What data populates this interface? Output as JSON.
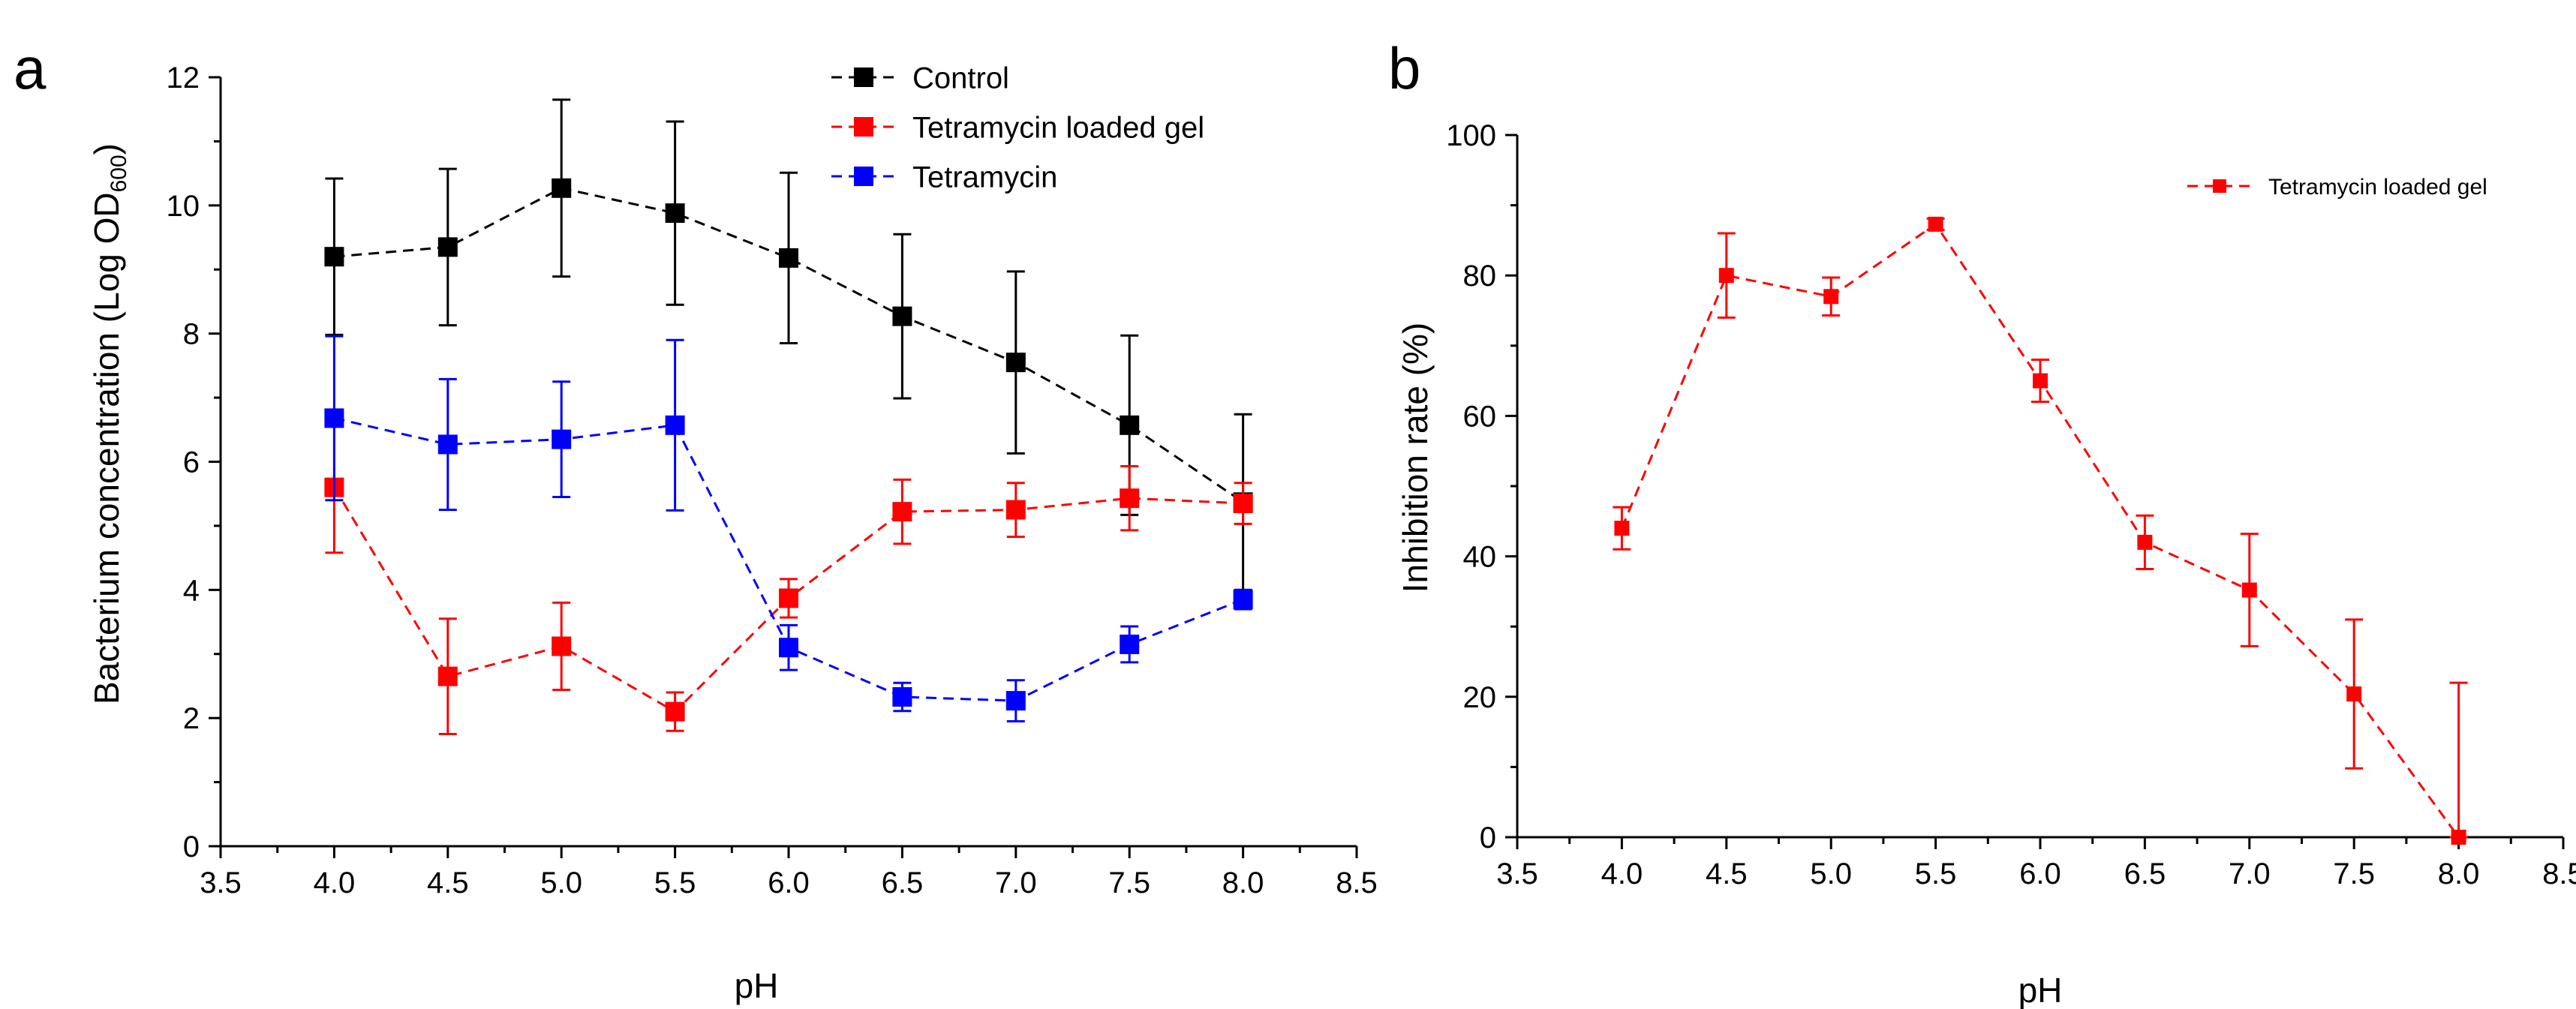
{
  "chart_data": [
    {
      "type": "line",
      "panel_label": "a",
      "title": "",
      "xlabel": "pH",
      "ylabel": "Bacterium concentration (Log OD",
      "ylabel_subscript": "600",
      "ylabel_close": ")",
      "xlim": [
        3.5,
        8.5
      ],
      "ylim": [
        0,
        12
      ],
      "xticks": [
        3.5,
        4.0,
        4.5,
        5.0,
        5.5,
        6.0,
        6.5,
        7.0,
        7.5,
        8.0,
        8.5
      ],
      "xtick_labels": [
        "3.5",
        "4.0",
        "4.5",
        "5.0",
        "5.5",
        "6.0",
        "6.5",
        "7.0",
        "7.5",
        "8.0",
        "8.5"
      ],
      "yticks": [
        0,
        2,
        4,
        6,
        8,
        10,
        12
      ],
      "ytick_labels": [
        "0",
        "2",
        "4",
        "6",
        "8",
        "10",
        "12"
      ],
      "grid": false,
      "legend_position": "top-right",
      "x": [
        4.0,
        4.5,
        5.0,
        5.5,
        6.0,
        6.5,
        7.0,
        7.5,
        8.0
      ],
      "series": [
        {
          "name": "Control",
          "color": "#000000",
          "values": [
            9.2,
            9.35,
            10.27,
            9.88,
            9.18,
            8.27,
            7.55,
            6.57,
            5.37
          ],
          "errors": [
            1.22,
            1.22,
            1.38,
            1.43,
            1.33,
            1.28,
            1.42,
            1.4,
            1.37
          ]
        },
        {
          "name": "Tetramycin loaded gel",
          "color": "#ff0000",
          "values": [
            5.6,
            2.65,
            3.12,
            2.1,
            3.87,
            5.22,
            5.25,
            5.43,
            5.35
          ],
          "errors": [
            1.02,
            0.9,
            0.68,
            0.3,
            0.3,
            0.5,
            0.42,
            0.5,
            0.32
          ]
        },
        {
          "name": "Tetramycin",
          "color": "#0000ff",
          "values": [
            6.68,
            6.27,
            6.35,
            6.57,
            3.1,
            2.33,
            2.27,
            3.15,
            3.85
          ],
          "errors": [
            1.28,
            1.02,
            0.9,
            1.33,
            0.35,
            0.22,
            0.32,
            0.28,
            0.15
          ]
        }
      ]
    },
    {
      "type": "line",
      "panel_label": "b",
      "title": "",
      "xlabel": "pH",
      "ylabel": "Inhibition rate (%)",
      "xlim": [
        3.5,
        8.5
      ],
      "ylim": [
        0,
        100
      ],
      "xticks": [
        3.5,
        4.0,
        4.5,
        5.0,
        5.5,
        6.0,
        6.5,
        7.0,
        7.5,
        8.0,
        8.5
      ],
      "xtick_labels": [
        "3.5",
        "4.0",
        "4.5",
        "5.0",
        "5.5",
        "6.0",
        "6.5",
        "7.0",
        "7.5",
        "8.0",
        "8.5"
      ],
      "yticks": [
        0,
        20,
        40,
        60,
        80,
        100
      ],
      "ytick_labels": [
        "0",
        "20",
        "40",
        "60",
        "80",
        "100"
      ],
      "grid": false,
      "legend_position": "top-right",
      "x": [
        4.0,
        4.5,
        5.0,
        5.5,
        6.0,
        6.5,
        7.0,
        7.5,
        8.0
      ],
      "series": [
        {
          "name": "Tetramycin loaded gel",
          "color": "#ff0000",
          "values": [
            44,
            80,
            77,
            87.3,
            65,
            42,
            35.2,
            20.4,
            0
          ],
          "errors": [
            3.0,
            6.0,
            2.7,
            0.8,
            3.0,
            3.8,
            8.0,
            10.6,
            22.0
          ]
        }
      ]
    }
  ]
}
